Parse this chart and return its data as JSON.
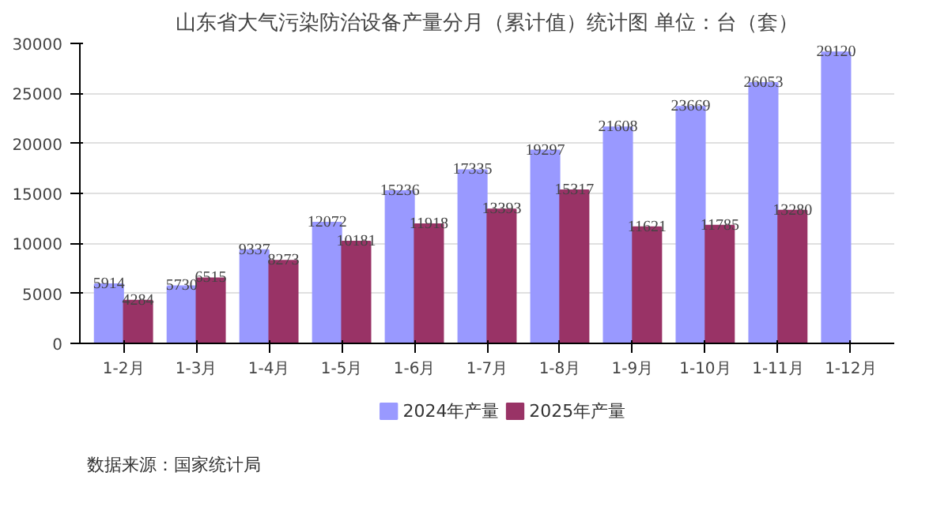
{
  "chart_data": {
    "type": "bar",
    "title": "山东省大气污染防治设备产量分月（累计值）统计图 单位：台（套）",
    "categories": [
      "1-2月",
      "1-3月",
      "1-4月",
      "1-5月",
      "1-6月",
      "1-7月",
      "1-8月",
      "1-9月",
      "1-10月",
      "1-11月",
      "1-12月"
    ],
    "series": [
      {
        "name": "2024年产量",
        "color": "#9999ff",
        "values": [
          5914,
          5730,
          9337,
          12072,
          15236,
          17335,
          19297,
          21608,
          23669,
          26053,
          29120
        ]
      },
      {
        "name": "2025年产量",
        "color": "#993366",
        "values": [
          4284,
          6515,
          8273,
          10181,
          11918,
          13393,
          15317,
          11621,
          11785,
          13280,
          null
        ]
      }
    ],
    "ylim": [
      0,
      30000
    ],
    "yticks": [
      0,
      5000,
      10000,
      15000,
      20000,
      25000,
      30000
    ],
    "grid": "y",
    "legend": "bottom",
    "data_labels": true,
    "annotations": [
      "数据来源：国家统计局"
    ]
  }
}
